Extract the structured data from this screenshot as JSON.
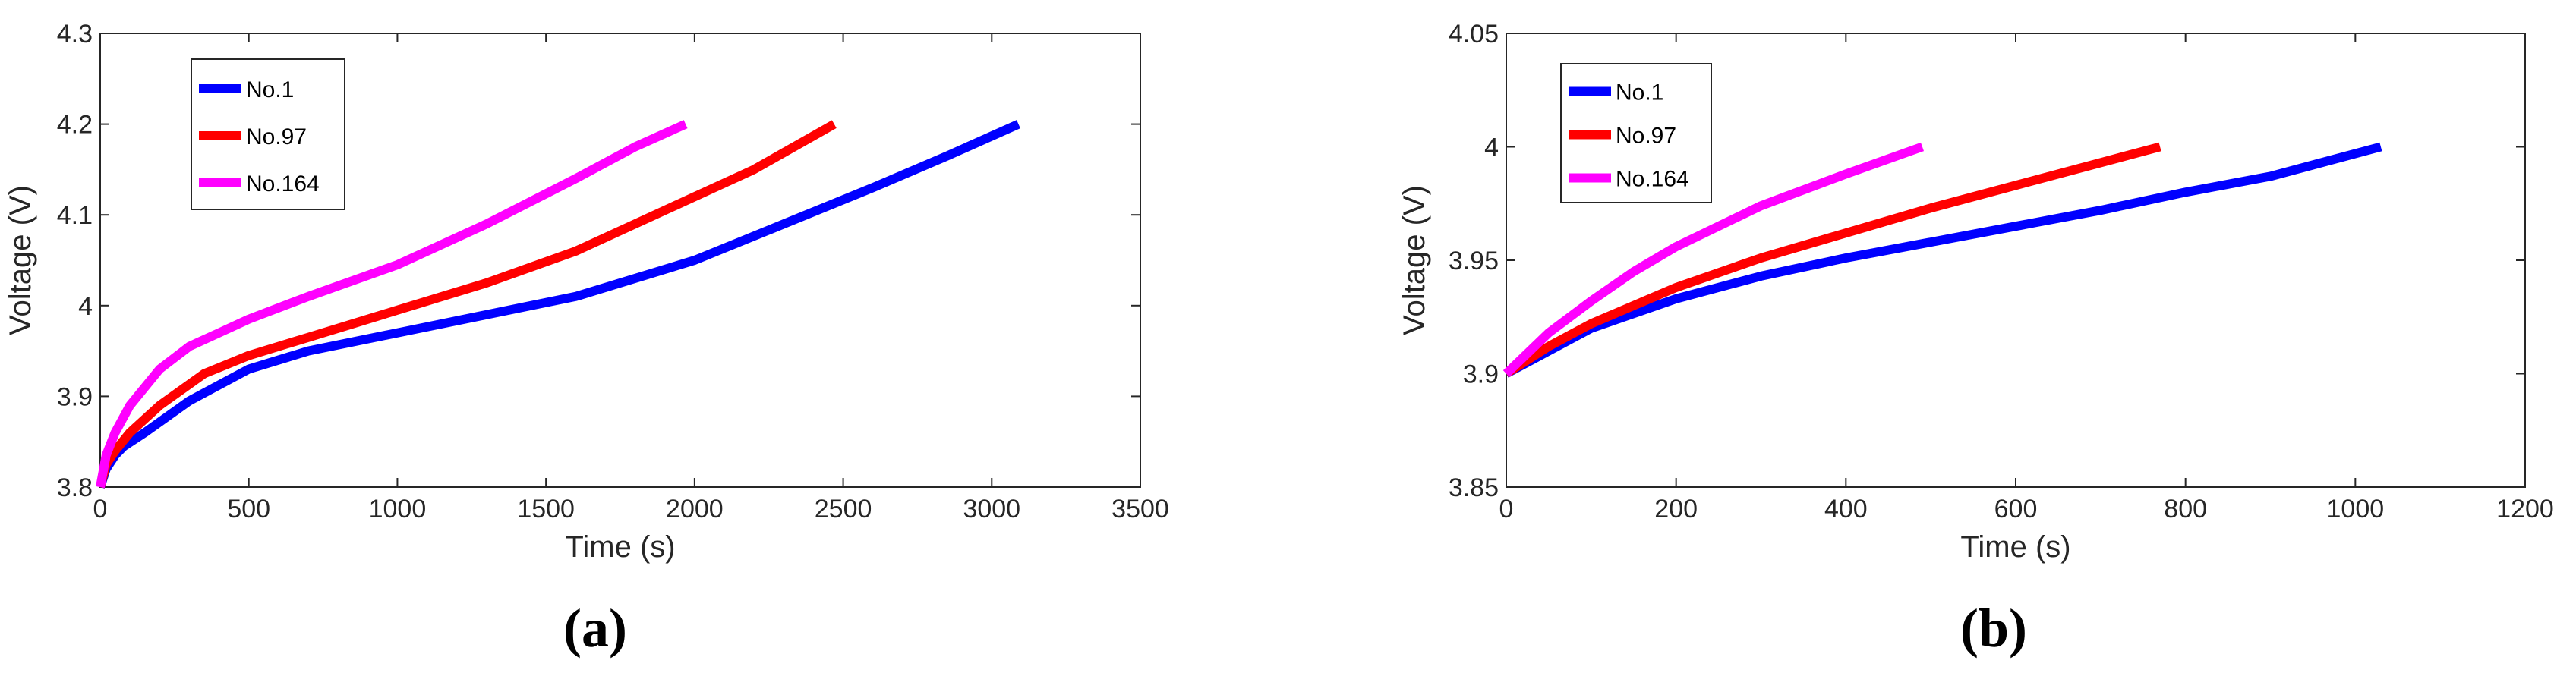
{
  "chart_data": [
    {
      "type": "line",
      "panel_label": "(a)",
      "xlabel": "Time (s)",
      "ylabel": "Voltage (V)",
      "xlim": [
        0,
        3500
      ],
      "ylim": [
        3.8,
        4.3
      ],
      "xticks": [
        0,
        500,
        1000,
        1500,
        2000,
        2500,
        3000,
        3500
      ],
      "yticks": [
        3.8,
        3.9,
        4.0,
        4.1,
        4.2,
        4.3
      ],
      "xtick_labels": [
        "0",
        "500",
        "1000",
        "1500",
        "2000",
        "2500",
        "3000",
        "3500"
      ],
      "ytick_labels": [
        "3.8",
        "3.9",
        "4",
        "4.1",
        "4.2",
        "4.3"
      ],
      "legend_position": "top-left",
      "series": [
        {
          "name": "No.1",
          "color": "#0000ff",
          "x": [
            0,
            20,
            50,
            80,
            150,
            300,
            500,
            700,
            1000,
            1300,
            1600,
            2000,
            2300,
            2600,
            2850,
            3090
          ],
          "y": [
            3.8,
            3.82,
            3.835,
            3.845,
            3.86,
            3.895,
            3.93,
            3.95,
            3.97,
            3.99,
            4.01,
            4.05,
            4.09,
            4.13,
            4.165,
            4.2
          ]
        },
        {
          "name": "No.97",
          "color": "#ff0000",
          "x": [
            0,
            20,
            50,
            100,
            200,
            350,
            500,
            700,
            1000,
            1300,
            1600,
            1900,
            2200,
            2470
          ],
          "y": [
            3.8,
            3.825,
            3.84,
            3.86,
            3.89,
            3.925,
            3.945,
            3.965,
            3.995,
            4.025,
            4.06,
            4.105,
            4.15,
            4.2
          ]
        },
        {
          "name": "No.164",
          "color": "#ff00ff",
          "x": [
            0,
            20,
            50,
            100,
            200,
            300,
            400,
            500,
            700,
            1000,
            1300,
            1600,
            1800,
            1970
          ],
          "y": [
            3.8,
            3.835,
            3.86,
            3.89,
            3.93,
            3.955,
            3.97,
            3.985,
            4.01,
            4.045,
            4.09,
            4.14,
            4.175,
            4.2
          ]
        }
      ]
    },
    {
      "type": "line",
      "panel_label": "(b)",
      "xlabel": "Time (s)",
      "ylabel": "Voltage (V)",
      "xlim": [
        0,
        1200
      ],
      "ylim": [
        3.85,
        4.05
      ],
      "xticks": [
        0,
        200,
        400,
        600,
        800,
        1000,
        1200
      ],
      "yticks": [
        3.85,
        3.9,
        3.95,
        4.0,
        4.05
      ],
      "xtick_labels": [
        "0",
        "200",
        "400",
        "600",
        "800",
        "1000",
        "1200"
      ],
      "ytick_labels": [
        "3.85",
        "3.9",
        "3.95",
        "4",
        "4.05"
      ],
      "legend_position": "top-left",
      "series": [
        {
          "name": "No.1",
          "color": "#0000ff",
          "x": [
            0,
            50,
            100,
            200,
            300,
            400,
            500,
            600,
            700,
            800,
            900,
            1030
          ],
          "y": [
            3.9,
            3.91,
            3.92,
            3.933,
            3.943,
            3.951,
            3.958,
            3.965,
            3.972,
            3.98,
            3.987,
            4.0
          ]
        },
        {
          "name": "No.97",
          "color": "#ff0000",
          "x": [
            0,
            50,
            100,
            200,
            300,
            400,
            500,
            600,
            700,
            770
          ],
          "y": [
            3.9,
            3.912,
            3.922,
            3.938,
            3.951,
            3.962,
            3.973,
            3.983,
            3.993,
            4.0
          ]
        },
        {
          "name": "No.164",
          "color": "#ff00ff",
          "x": [
            0,
            50,
            100,
            150,
            200,
            300,
            400,
            490
          ],
          "y": [
            3.9,
            3.918,
            3.932,
            3.945,
            3.956,
            3.974,
            3.988,
            4.0
          ]
        }
      ]
    }
  ]
}
